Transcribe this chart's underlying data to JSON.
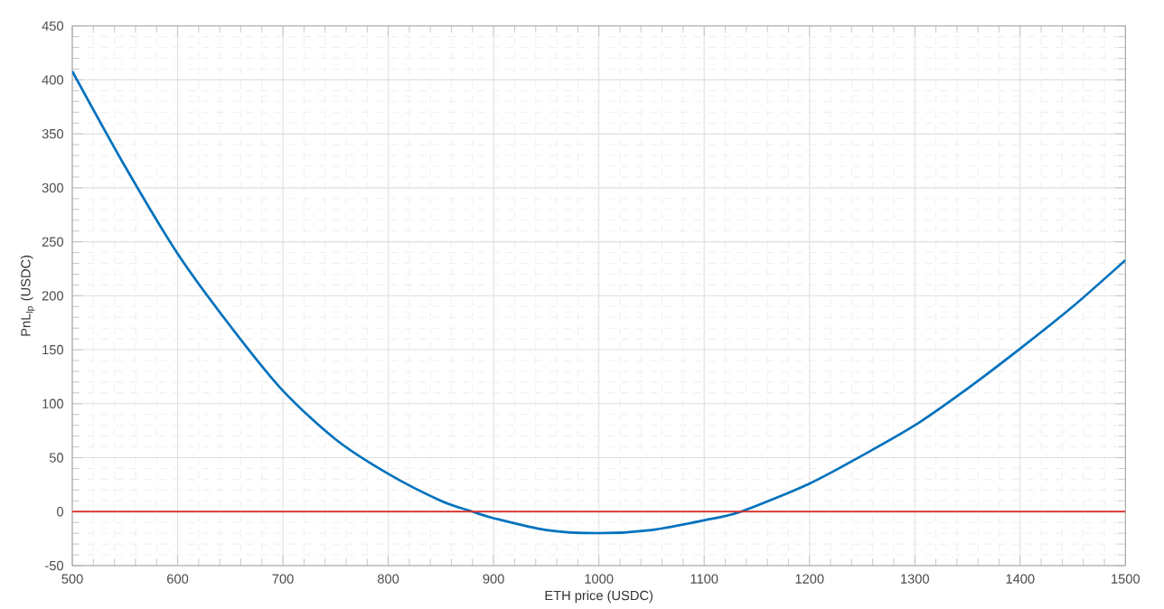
{
  "chart_data": {
    "type": "line",
    "xlabel": "ETH price (USDC)",
    "ylabel": "PnL$_{lp}$ (USDC)",
    "x": [
      500,
      550,
      600,
      650,
      700,
      750,
      800,
      850,
      880,
      900,
      950,
      1000,
      1050,
      1100,
      1135,
      1200,
      1250,
      1300,
      1350,
      1400,
      1450,
      1500
    ],
    "series": [
      {
        "color": "#0072bd",
        "values": [
          408,
          320,
          239,
          172,
          112,
          67,
          35,
          10,
          0,
          -6,
          -17,
          -20,
          -17,
          -8,
          0,
          26,
          52,
          80,
          114,
          151,
          190,
          233
        ]
      }
    ],
    "ref_lines": [
      {
        "axis": "y",
        "value": 0,
        "color": "#d9302b"
      }
    ],
    "xlim": [
      500,
      1500
    ],
    "ylim": [
      -50,
      450
    ],
    "xticks": [
      500,
      600,
      700,
      800,
      900,
      1000,
      1100,
      1200,
      1300,
      1400,
      1500
    ],
    "yticks": [
      -50,
      0,
      50,
      100,
      150,
      200,
      250,
      300,
      350,
      400,
      450
    ],
    "grid": true,
    "marker": "none",
    "line_style": "solid"
  }
}
